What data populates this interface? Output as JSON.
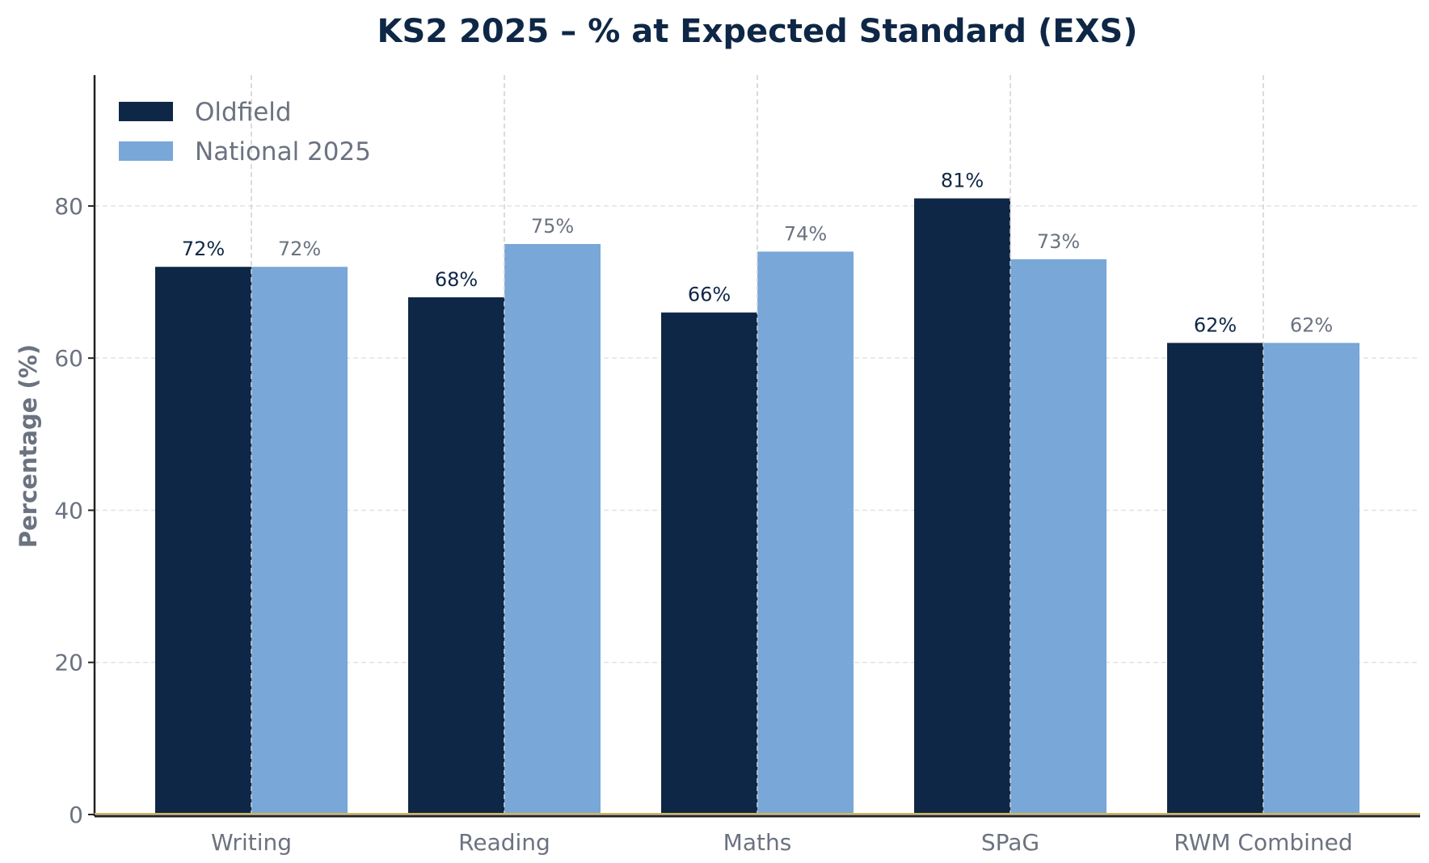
{
  "chart_data": {
    "type": "bar",
    "title": "KS2 2025 – % at Expected Standard (EXS)",
    "xlabel": "",
    "ylabel": "Percentage (%)",
    "categories": [
      "Writing",
      "Reading",
      "Maths",
      "SPaG",
      "RWM Combined"
    ],
    "series": [
      {
        "name": "Oldfield",
        "values": [
          72,
          68,
          66,
          81,
          62
        ],
        "color": "#0f2746",
        "label_color": "#0f2746"
      },
      {
        "name": "National 2025",
        "values": [
          72,
          75,
          74,
          73,
          62
        ],
        "color": "#78a7d8",
        "label_color": "#6b7280"
      }
    ],
    "data_labels": [
      [
        "72%",
        "68%",
        "66%",
        "81%",
        "62%"
      ],
      [
        "72%",
        "75%",
        "74%",
        "73%",
        "62%"
      ]
    ],
    "ylim": [
      0,
      97.2
    ],
    "yticks": [
      0,
      20,
      40,
      60,
      80
    ],
    "grid": true,
    "legend_position": "top-left"
  }
}
